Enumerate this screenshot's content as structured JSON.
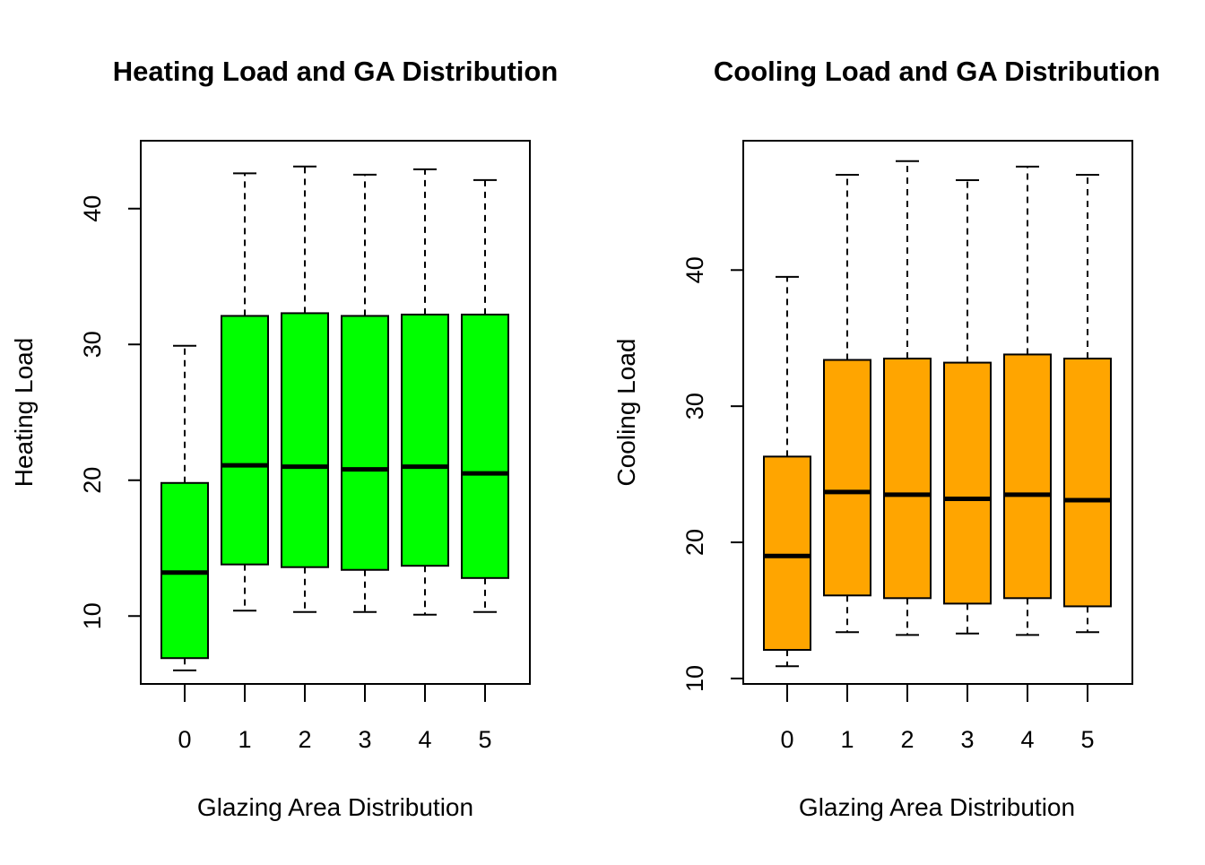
{
  "colors": {
    "heating_box": "#00ff00",
    "cooling_box": "#ffa500",
    "median": "#000000",
    "frame": "#000000"
  },
  "chart_data": [
    {
      "type": "boxplot",
      "title": "Heating Load and GA Distribution",
      "xlabel": "Glazing Area Distribution",
      "ylabel": "Heating Load",
      "categories": [
        "0",
        "1",
        "2",
        "3",
        "4",
        "5"
      ],
      "y_ticks": [
        "10",
        "20",
        "30",
        "40"
      ],
      "ylim": [
        5.0,
        45.0
      ],
      "fill_color": "#00ff00",
      "grid": false,
      "legend": "none",
      "boxes": [
        {
          "category": "0",
          "whisker_low": 6.0,
          "q1": 6.9,
          "median": 13.2,
          "q3": 19.8,
          "whisker_high": 29.9
        },
        {
          "category": "1",
          "whisker_low": 10.4,
          "q1": 13.8,
          "median": 21.1,
          "q3": 32.1,
          "whisker_high": 42.6
        },
        {
          "category": "2",
          "whisker_low": 10.3,
          "q1": 13.6,
          "median": 21.0,
          "q3": 32.3,
          "whisker_high": 43.1
        },
        {
          "category": "3",
          "whisker_low": 10.3,
          "q1": 13.4,
          "median": 20.8,
          "q3": 32.1,
          "whisker_high": 42.5
        },
        {
          "category": "4",
          "whisker_low": 10.1,
          "q1": 13.7,
          "median": 21.0,
          "q3": 32.2,
          "whisker_high": 42.9
        },
        {
          "category": "5",
          "whisker_low": 10.3,
          "q1": 12.8,
          "median": 20.5,
          "q3": 32.2,
          "whisker_high": 42.1
        }
      ]
    },
    {
      "type": "boxplot",
      "title": "Cooling Load and GA Distribution",
      "xlabel": "Glazing Area Distribution",
      "ylabel": "Cooling Load",
      "categories": [
        "0",
        "1",
        "2",
        "3",
        "4",
        "5"
      ],
      "y_ticks": [
        "10",
        "20",
        "30",
        "40"
      ],
      "ylim": [
        9.6,
        49.5
      ],
      "fill_color": "#ffa500",
      "grid": false,
      "legend": "none",
      "boxes": [
        {
          "category": "0",
          "whisker_low": 10.9,
          "q1": 12.1,
          "median": 19.0,
          "q3": 26.3,
          "whisker_high": 39.5
        },
        {
          "category": "1",
          "whisker_low": 13.4,
          "q1": 16.1,
          "median": 23.7,
          "q3": 33.4,
          "whisker_high": 47.0
        },
        {
          "category": "2",
          "whisker_low": 13.2,
          "q1": 15.9,
          "median": 23.5,
          "q3": 33.5,
          "whisker_high": 48.0
        },
        {
          "category": "3",
          "whisker_low": 13.3,
          "q1": 15.5,
          "median": 23.2,
          "q3": 33.2,
          "whisker_high": 46.6
        },
        {
          "category": "4",
          "whisker_low": 13.2,
          "q1": 15.9,
          "median": 23.5,
          "q3": 33.8,
          "whisker_high": 47.6
        },
        {
          "category": "5",
          "whisker_low": 13.4,
          "q1": 15.3,
          "median": 23.1,
          "q3": 33.5,
          "whisker_high": 47.0
        }
      ]
    }
  ]
}
